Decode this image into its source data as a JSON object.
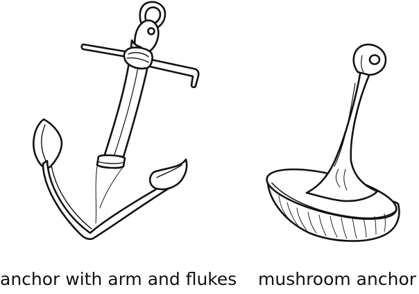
{
  "figure": {
    "items": [
      {
        "label": "anchor with arm and flukes",
        "icon": "stockless-anchor-with-stock-icon"
      },
      {
        "label": "mushroom anchor",
        "icon": "mushroom-anchor-icon"
      }
    ],
    "colors": {
      "stroke": "#111111",
      "fill": "#ffffff"
    }
  }
}
